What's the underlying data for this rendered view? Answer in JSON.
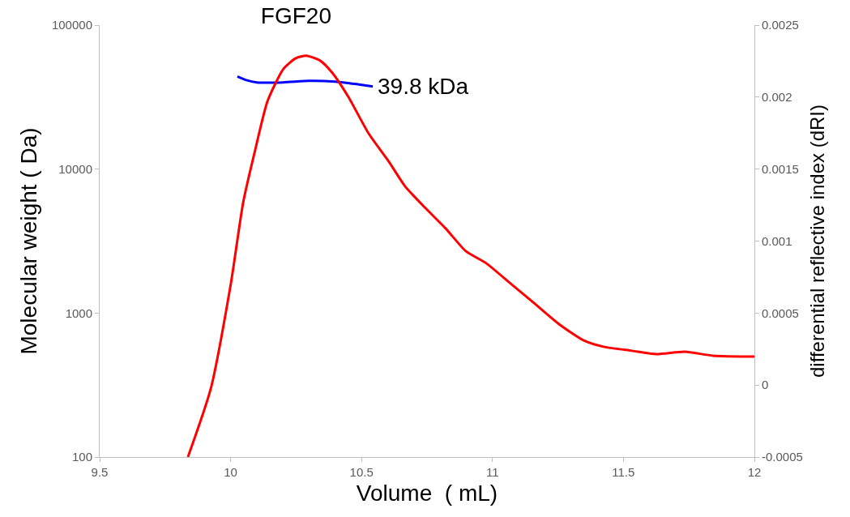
{
  "chart_data": {
    "type": "line",
    "title": "FGF20",
    "xlabel": "Volume  ( mL)",
    "ylabel": "Molecular weight ( Da)",
    "y2label": "differential reflective index (dRI)",
    "annotations": [
      {
        "text": "39.8 kDa",
        "x": 10.543,
        "y": 37500
      }
    ],
    "series": [
      {
        "color": "#ff0000",
        "axis": "y2",
        "x": [
          9.837,
          9.924,
          10.001,
          10.048,
          10.094,
          10.141,
          10.202,
          10.249,
          10.289,
          10.342,
          10.388,
          10.45,
          10.527,
          10.605,
          10.666,
          10.744,
          10.821,
          10.898,
          10.976,
          11.069,
          11.162,
          11.254,
          11.347,
          11.424,
          11.533,
          11.626,
          11.734,
          11.842,
          12.0
        ],
        "values": [
          -0.0005,
          -2.7e-05,
          0.000705,
          0.001268,
          0.001634,
          0.001972,
          0.002197,
          0.00227,
          0.002287,
          0.002253,
          0.002169,
          0.002,
          0.001747,
          0.00155,
          0.001381,
          0.001229,
          0.001088,
          0.00093,
          0.000846,
          0.000705,
          0.000564,
          0.000423,
          0.000311,
          0.000266,
          0.000238,
          0.000215,
          0.000232,
          0.000204,
          0.000198
        ]
      },
      {
        "color": "#0000ff",
        "x": [
          10.026,
          10.06,
          10.1,
          10.2,
          10.3,
          10.4,
          10.5,
          10.543
        ],
        "values": [
          44000,
          41500,
          40000,
          40000,
          41000,
          40500,
          38500,
          37500
        ]
      }
    ],
    "xlim": [
      9.5,
      12
    ],
    "xticks": [
      9.5,
      10,
      10.5,
      11,
      11.5,
      12
    ],
    "ylim": [
      100,
      100000
    ],
    "yticks": [
      100,
      1000,
      10000,
      100000
    ],
    "y2lim": [
      -0.0005,
      0.0025
    ],
    "y2ticks": [
      -0.0005,
      0,
      0.0005,
      0.001,
      0.0015,
      0.002,
      0.0025
    ],
    "log": "y",
    "marker": "none",
    "line_style": "solid"
  }
}
